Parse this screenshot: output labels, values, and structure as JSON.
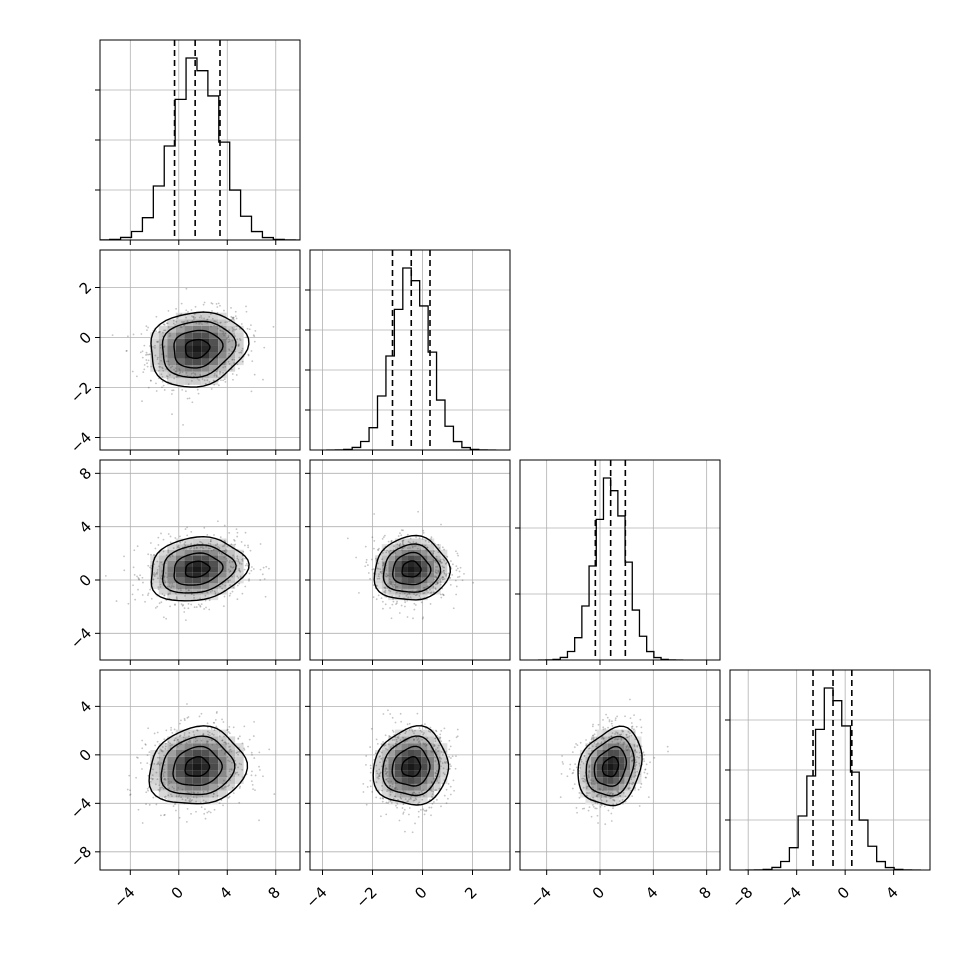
{
  "chart_data": {
    "type": "corner",
    "colors": {
      "line": "#000000",
      "grid": "#b0b0b0",
      "points": "#555555"
    },
    "grid": true,
    "parameters": [
      {
        "key": "p0",
        "range": [
          -6.5,
          10.0
        ],
        "ticks": [
          -4,
          0,
          4,
          8
        ],
        "tick_labels": [
          "−4",
          "0",
          "4",
          "8"
        ],
        "mean": 1.5,
        "sigma": 2.0,
        "quantiles": [
          -0.35,
          1.35,
          3.4
        ],
        "hist_y_ticks": [
          0.25,
          0.5,
          0.75
        ]
      },
      {
        "key": "p1",
        "range": [
          -4.5,
          3.5
        ],
        "ticks": [
          -4,
          -2,
          0,
          2
        ],
        "tick_labels": [
          "−4",
          "−2",
          "0",
          "2"
        ],
        "mean": -0.45,
        "sigma": 0.75,
        "quantiles": [
          -1.2,
          -0.45,
          0.3
        ],
        "hist_y_ticks": [
          0.2,
          0.4,
          0.6,
          0.8
        ]
      },
      {
        "key": "p2",
        "range": [
          -6.0,
          9.0
        ],
        "ticks": [
          -4,
          0,
          4,
          8
        ],
        "tick_labels": [
          "−4",
          "0",
          "4",
          "8"
        ],
        "mean": 0.8,
        "sigma": 1.2,
        "quantiles": [
          -0.35,
          0.8,
          1.9
        ],
        "hist_y_ticks": [
          0.33,
          0.66
        ]
      },
      {
        "key": "p3",
        "range": [
          -9.5,
          7.0
        ],
        "ticks": [
          -8,
          -4,
          0,
          4
        ],
        "tick_labels": [
          "−8",
          "−4",
          "0",
          "4"
        ],
        "mean": -1.0,
        "sigma": 1.6,
        "quantiles": [
          -2.65,
          -1.0,
          0.55
        ],
        "hist_y_ticks": [
          0.25,
          0.5,
          0.75
        ]
      }
    ],
    "correlations": [
      [
        1,
        0.12,
        0.15,
        0.1
      ],
      [
        0.12,
        1,
        0.05,
        0.08
      ],
      [
        0.15,
        0.05,
        1,
        0.2
      ],
      [
        0.1,
        0.08,
        0.2,
        1
      ]
    ],
    "contour_levels_sigma": [
      0.5,
      1.0,
      1.5,
      2.0
    ]
  }
}
